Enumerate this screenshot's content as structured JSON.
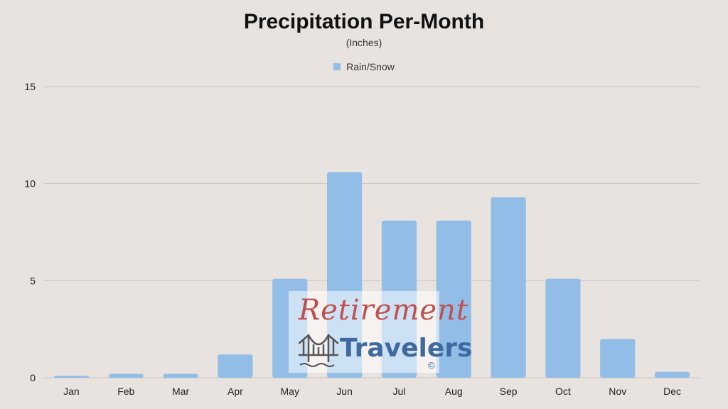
{
  "chart_data": {
    "type": "bar",
    "title": "Precipitation Per-Month",
    "subtitle": "(Inches)",
    "categories": [
      "Jan",
      "Feb",
      "Mar",
      "Apr",
      "May",
      "Jun",
      "Jul",
      "Aug",
      "Sep",
      "Oct",
      "Nov",
      "Dec"
    ],
    "series": [
      {
        "name": "Rain/Snow",
        "values": [
          0.1,
          0.2,
          0.2,
          1.2,
          5.1,
          10.6,
          8.1,
          8.1,
          9.3,
          5.1,
          2.0,
          0.3
        ],
        "color": "#91bde6"
      }
    ],
    "yticks": [
      "0",
      "5",
      "10",
      "15"
    ],
    "ylim": [
      0,
      15
    ],
    "grid": true,
    "legend_position": "top-center"
  },
  "watermark": {
    "line1": "Retirement",
    "line2": "Travelers",
    "copyright": "©"
  },
  "colors": {
    "background": "#e8e3de",
    "gridline": "#c8c3bd",
    "bar": "#91bde6",
    "watermark_red": "#c0504d",
    "watermark_blue": "#3e6a9f"
  },
  "icons": [
    "bridge-icon"
  ]
}
